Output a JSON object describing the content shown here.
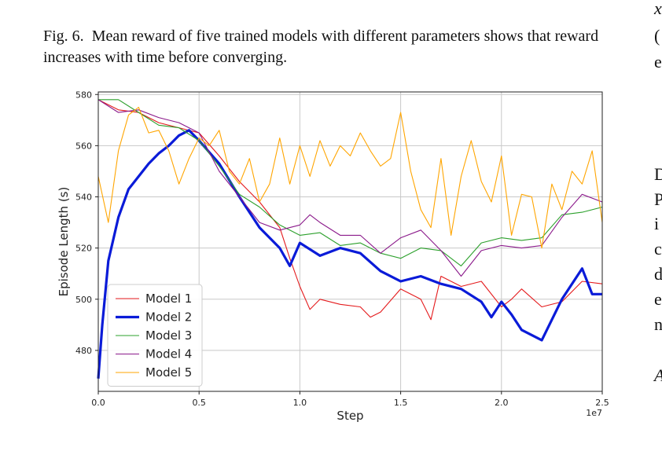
{
  "caption": {
    "label": "Fig. 6.",
    "text": "Mean reward of five trained models with different parameters shows that reward increases with time before converging."
  },
  "right_column_fragments": [
    "x",
    "(",
    "e",
    "D",
    "P",
    "i",
    "c",
    "d",
    "e",
    "n",
    "A"
  ],
  "chart_data": {
    "type": "line",
    "title": "",
    "xlabel": "Step",
    "ylabel": "Episode Length (s)",
    "x_multiplier_label": "1e7",
    "xlim": [
      0,
      2.5
    ],
    "ylim": [
      464,
      581
    ],
    "x_ticks": [
      0.0,
      0.5,
      1.0,
      1.5,
      2.0,
      2.5
    ],
    "x_tick_labels": [
      "0.0",
      "0.5",
      "1.0",
      "1.5",
      "2.0",
      "2.5"
    ],
    "y_ticks": [
      480,
      500,
      520,
      540,
      560,
      580
    ],
    "y_tick_labels": [
      "480",
      "500",
      "520",
      "540",
      "560",
      "580"
    ],
    "grid": true,
    "legend_position": "lower-left",
    "series": [
      {
        "name": "Model 1",
        "color": "#e41a1c",
        "width": 1.1,
        "x": [
          0.0,
          0.1,
          0.2,
          0.3,
          0.4,
          0.5,
          0.6,
          0.7,
          0.8,
          0.9,
          0.95,
          1.0,
          1.05,
          1.1,
          1.2,
          1.3,
          1.35,
          1.4,
          1.5,
          1.6,
          1.65,
          1.7,
          1.8,
          1.9,
          2.0,
          2.05,
          2.1,
          2.2,
          2.3,
          2.4,
          2.5
        ],
        "y": [
          578,
          574,
          573,
          569,
          567,
          565,
          556,
          546,
          538,
          528,
          516,
          505,
          496,
          500,
          498,
          497,
          493,
          495,
          504,
          500,
          492,
          509,
          505,
          507,
          497,
          500,
          504,
          497,
          499,
          507,
          506
        ]
      },
      {
        "name": "Model 2",
        "color": "#0a1bd8",
        "width": 3.2,
        "x": [
          0.0,
          0.02,
          0.05,
          0.1,
          0.15,
          0.2,
          0.25,
          0.3,
          0.35,
          0.4,
          0.45,
          0.5,
          0.6,
          0.7,
          0.8,
          0.9,
          0.95,
          1.0,
          1.1,
          1.2,
          1.3,
          1.4,
          1.5,
          1.6,
          1.7,
          1.8,
          1.9,
          1.95,
          2.0,
          2.05,
          2.1,
          2.2,
          2.3,
          2.4,
          2.45,
          2.5
        ],
        "y": [
          469,
          490,
          515,
          532,
          543,
          548,
          553,
          557,
          560,
          564,
          566,
          562,
          553,
          540,
          528,
          520,
          513,
          522,
          517,
          520,
          518,
          511,
          507,
          509,
          506,
          504,
          499,
          493,
          499,
          494,
          488,
          484,
          500,
          512,
          502,
          502
        ]
      },
      {
        "name": "Model 3",
        "color": "#2ca02c",
        "width": 1.1,
        "x": [
          0.0,
          0.1,
          0.2,
          0.3,
          0.4,
          0.5,
          0.6,
          0.7,
          0.8,
          0.9,
          1.0,
          1.1,
          1.2,
          1.3,
          1.4,
          1.5,
          1.6,
          1.7,
          1.8,
          1.9,
          2.0,
          2.1,
          2.2,
          2.3,
          2.4,
          2.5
        ],
        "y": [
          578,
          578,
          573,
          568,
          567,
          562,
          552,
          541,
          536,
          529,
          525,
          526,
          521,
          522,
          518,
          516,
          520,
          519,
          513,
          522,
          524,
          523,
          524,
          533,
          534,
          536
        ]
      },
      {
        "name": "Model 4",
        "color": "#8b1a8b",
        "width": 1.1,
        "x": [
          0.0,
          0.1,
          0.2,
          0.3,
          0.4,
          0.5,
          0.6,
          0.7,
          0.8,
          0.9,
          1.0,
          1.05,
          1.1,
          1.2,
          1.3,
          1.4,
          1.5,
          1.6,
          1.7,
          1.8,
          1.9,
          2.0,
          2.1,
          2.2,
          2.3,
          2.4,
          2.5
        ],
        "y": [
          578,
          573,
          574,
          571,
          569,
          565,
          550,
          540,
          530,
          527,
          529,
          533,
          530,
          525,
          525,
          518,
          524,
          527,
          519,
          509,
          519,
          521,
          520,
          521,
          532,
          541,
          538
        ]
      },
      {
        "name": "Model 5",
        "color": "#ffa500",
        "width": 1.1,
        "x": [
          0.0,
          0.05,
          0.1,
          0.15,
          0.2,
          0.25,
          0.3,
          0.35,
          0.4,
          0.45,
          0.5,
          0.55,
          0.6,
          0.65,
          0.7,
          0.75,
          0.8,
          0.85,
          0.9,
          0.95,
          1.0,
          1.05,
          1.1,
          1.15,
          1.2,
          1.25,
          1.3,
          1.35,
          1.4,
          1.45,
          1.5,
          1.55,
          1.6,
          1.65,
          1.7,
          1.75,
          1.8,
          1.85,
          1.9,
          1.95,
          2.0,
          2.05,
          2.1,
          2.15,
          2.2,
          2.25,
          2.3,
          2.35,
          2.4,
          2.45,
          2.5
        ],
        "y": [
          548,
          530,
          558,
          572,
          575,
          565,
          566,
          558,
          545,
          555,
          563,
          560,
          566,
          550,
          545,
          555,
          538,
          545,
          563,
          545,
          560,
          548,
          562,
          552,
          560,
          556,
          565,
          558,
          552,
          555,
          573,
          550,
          535,
          528,
          555,
          525,
          548,
          562,
          546,
          538,
          556,
          525,
          541,
          540,
          520,
          545,
          535,
          550,
          545,
          558,
          530
        ]
      }
    ]
  }
}
